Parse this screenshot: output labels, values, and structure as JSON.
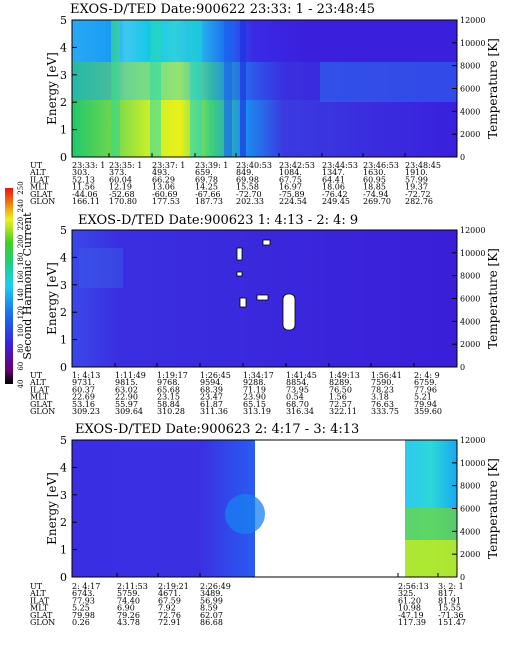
{
  "chart_data": [
    {
      "type": "heatmap",
      "title": "EXOS-D/TED   Date:900622  23:33: 1 - 23:48:45",
      "ylabel": "Energy [eV]",
      "y2label": "Temperature [K]",
      "ylim": [
        0,
        5
      ],
      "y2lim": [
        0,
        12000
      ],
      "yticks": [
        "0",
        "1",
        "2",
        "3",
        "4",
        "5"
      ],
      "y2ticks": [
        "0",
        "2000",
        "4000",
        "6000",
        "8000",
        "10000",
        "12000"
      ],
      "row_labels": [
        "UT",
        "ALT",
        "ILAT",
        "MLT",
        "GLAT",
        "GLON"
      ],
      "columns": [
        [
          "23:33: 1",
          "303.",
          "52.13",
          "11.56",
          "-44.06",
          "166.11"
        ],
        [
          "23:35: 1",
          "373.",
          "60.04",
          "12.19",
          "-52.68",
          "170.80"
        ],
        [
          "23:37: 1",
          "493.",
          "66.29",
          "13.06",
          "-60.69",
          "177.53"
        ],
        [
          "23:39: 1",
          "659.",
          "69.78",
          "14.25",
          "-67.66",
          "187.73"
        ],
        [
          "23:40:53",
          "849.",
          "69.98",
          "15.58",
          "-72.70",
          "202.33"
        ],
        [
          "23:42:53",
          "1084.",
          "67.75",
          "16.97",
          "-75.89",
          "224.54"
        ],
        [
          "23:44:53",
          "1347.",
          "64.41",
          "18.06",
          "-76.42",
          "249.45"
        ],
        [
          "23:46:53",
          "1630.",
          "60.95",
          "18.85",
          "-74.94",
          "269.70"
        ],
        [
          "23:48:45",
          "1910.",
          "57.99",
          "19.37",
          "-72.72",
          "282.76"
        ]
      ]
    },
    {
      "type": "heatmap",
      "title": "EXOS-D/TED   Date:900623  1: 4:13 - 2: 4: 9",
      "ylabel": "Energy [eV]",
      "y2label": "Temperature [K]",
      "ylim": [
        0,
        5
      ],
      "y2lim": [
        0,
        12000
      ],
      "yticks": [
        "0",
        "1",
        "2",
        "3",
        "4",
        "5"
      ],
      "y2ticks": [
        "0",
        "2000",
        "4000",
        "6000",
        "8000",
        "10000",
        "12000"
      ],
      "row_labels": [
        "UT",
        "ALT",
        "ILAT",
        "MLT",
        "GLAT",
        "GLON"
      ],
      "columns": [
        [
          "1: 4:13",
          "9731.",
          "60.37",
          "22.69",
          "53.16",
          "309.23"
        ],
        [
          "1:11:49",
          "9815.",
          "63.02",
          "22.90",
          "55.97",
          "309.64"
        ],
        [
          "1:19:17",
          "9768.",
          "65.68",
          "23.15",
          "58.84",
          "310.28"
        ],
        [
          "1:26:45",
          "9594.",
          "68.39",
          "23.47",
          "61.87",
          "311.36"
        ],
        [
          "1:34:17",
          "9288.",
          "71.19",
          "23.90",
          "65.15",
          "313.19"
        ],
        [
          "1:41:45",
          "8854.",
          "73.95",
          "0.54",
          "68.70",
          "316.34"
        ],
        [
          "1:49:13",
          "8289.",
          "76.50",
          "1.56",
          "72.57",
          "322.11"
        ],
        [
          "1:56:41",
          "7590.",
          "78.23",
          "3.18",
          "76.63",
          "333.75"
        ],
        [
          "2: 4: 9",
          "6759.",
          "77.96",
          "5.21",
          "79.94",
          "359.60"
        ]
      ],
      "colorbar_label": "Second Harmonic Current",
      "colorbar_ticks": [
        "40",
        "60",
        "80",
        "100",
        "120",
        "140",
        "160",
        "180",
        "200",
        "220",
        "240",
        "250"
      ]
    },
    {
      "type": "heatmap",
      "title": "EXOS-D/TED   Date:900623  2: 4:17 - 3: 4:13",
      "ylabel": "Energy [eV]",
      "y2label": "Temperature [K]",
      "ylim": [
        0,
        5
      ],
      "y2lim": [
        0,
        12000
      ],
      "yticks": [
        "0",
        "1",
        "2",
        "3",
        "4",
        "5"
      ],
      "y2ticks": [
        "0",
        "2000",
        "4000",
        "6000",
        "8000",
        "10000",
        "12000"
      ],
      "row_labels": [
        "UT",
        "ALT",
        "ILAT",
        "MLT",
        "GLAT",
        "GLON"
      ],
      "columns": [
        [
          "2: 4:17",
          "6743.",
          "77.93",
          "5.25",
          "79.98",
          "0.26"
        ],
        [
          "2:11:53",
          "5759.",
          "74.40",
          "6.90",
          "79.26",
          "43.78"
        ],
        [
          "2:19:21",
          "4671.",
          "67.59",
          "7.92",
          "72.76",
          "72.91"
        ],
        [
          "2:26:49",
          "3489.",
          "56.99",
          "8.59",
          "62.07",
          "86.68"
        ],
        [
          "2:56:13",
          "325.",
          "61.20",
          "10.98",
          "-47.19",
          "117.39"
        ],
        [
          "3: 2: 1",
          "817.",
          "81.91",
          "15.55",
          "-71.36",
          "151.47"
        ]
      ]
    }
  ]
}
